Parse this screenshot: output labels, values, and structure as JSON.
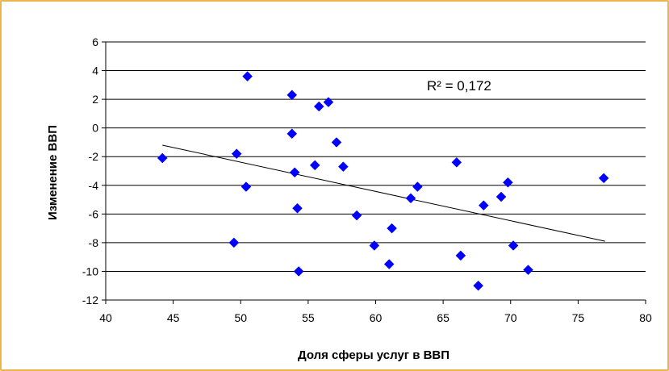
{
  "chart_data": {
    "type": "scatter",
    "title": "",
    "xlabel": "Доля сферы услуг в ВВП",
    "ylabel": "Изменение ВВП",
    "xlim": [
      40,
      80
    ],
    "ylim": [
      -12,
      6
    ],
    "x_ticks": [
      40,
      45,
      50,
      55,
      60,
      65,
      70,
      75,
      80
    ],
    "y_ticks": [
      6,
      4,
      2,
      0,
      -2,
      -4,
      -6,
      -8,
      -10,
      -12
    ],
    "y_tick_labels": [
      "6",
      "4",
      "2",
      "0",
      "-2",
      "-4",
      "-6",
      "-8",
      "-10",
      "-12"
    ],
    "grid": "horizontal",
    "legend": "none",
    "marker": "diamond",
    "marker_color": "#0000ff",
    "annotation": "R² = 0,172",
    "trendline": {
      "x": [
        44.2,
        77.0
      ],
      "y": [
        -1.2,
        -7.9
      ]
    },
    "series": [
      {
        "x": [
          44.2,
          49.5,
          49.7,
          50.4,
          50.5,
          53.8,
          53.8,
          54.0,
          54.2,
          54.3,
          55.5,
          55.8,
          56.5,
          57.1,
          57.6,
          58.6,
          59.9,
          61.0,
          61.2,
          62.6,
          63.1,
          66.0,
          66.3,
          67.6,
          68.0,
          69.3,
          69.8,
          70.2,
          71.3,
          76.9
        ],
        "y": [
          -2.1,
          -8.0,
          -1.8,
          -4.1,
          3.6,
          2.3,
          -0.4,
          -3.1,
          -5.6,
          -10.0,
          -2.6,
          1.5,
          1.8,
          -1.0,
          -2.7,
          -6.1,
          -8.2,
          -9.5,
          -7.0,
          -4.9,
          -4.1,
          -2.4,
          -8.9,
          -11.0,
          -5.4,
          -4.8,
          -3.8,
          -8.2,
          -9.9,
          -3.5
        ]
      }
    ]
  }
}
